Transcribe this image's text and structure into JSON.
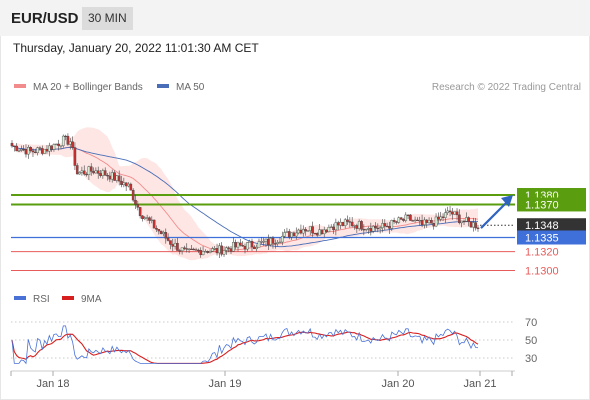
{
  "header": {
    "symbol": "EUR/USD",
    "timeframe": "30 MIN",
    "timestamp": "Thursday, January 20, 2022 11:01:30 AM CET"
  },
  "colors": {
    "bollinger_line": "#f28b8b",
    "bollinger_band": "#fde3e1",
    "ma50": "#4a6db8",
    "resistance": "#5a9e0f",
    "current": "#333333",
    "pivot": "#3f6fd8",
    "support": "#e85b5b",
    "rsi": "#4a72d6",
    "rsi_ma": "#d81f1f",
    "candle_up": "#d6efd6",
    "candle_down": "#c53030"
  },
  "chart_data": [
    {
      "type": "candlestick",
      "legend": [
        {
          "name": "MA 20 + Bollinger Bands",
          "color": "#f28b8b"
        },
        {
          "name": "MA 50",
          "color": "#4a6db8"
        }
      ],
      "watermark": "Research © 2022 Trading Central",
      "x_ticks": [
        "Jan 18",
        "Jan 19",
        "Jan 20",
        "Jan 21"
      ],
      "ylim": [
        1.129,
        1.147
      ],
      "levels": [
        {
          "value": 1.138,
          "label": "1.1380",
          "kind": "resistance"
        },
        {
          "value": 1.137,
          "label": "1.1370",
          "kind": "resistance"
        },
        {
          "value": 1.1348,
          "label": "1.1348",
          "kind": "current"
        },
        {
          "value": 1.1335,
          "label": "1.1335",
          "kind": "pivot"
        },
        {
          "value": 1.132,
          "label": "1.1320",
          "kind": "support"
        },
        {
          "value": 1.13,
          "label": "1.1300",
          "kind": "support"
        }
      ],
      "forecast_target": 1.138,
      "close_anchors": [
        [
          0,
          1.1432
        ],
        [
          8,
          1.1426
        ],
        [
          15,
          1.1429
        ],
        [
          22,
          1.1438
        ],
        [
          25,
          1.1437
        ],
        [
          28,
          1.1403
        ],
        [
          35,
          1.1406
        ],
        [
          42,
          1.1401
        ],
        [
          50,
          1.1389
        ],
        [
          55,
          1.1362
        ],
        [
          60,
          1.1349
        ],
        [
          68,
          1.133
        ],
        [
          75,
          1.1318
        ],
        [
          82,
          1.1322
        ],
        [
          88,
          1.1321
        ],
        [
          95,
          1.1325
        ],
        [
          102,
          1.1327
        ],
        [
          110,
          1.133
        ],
        [
          118,
          1.1338
        ],
        [
          125,
          1.1345
        ],
        [
          132,
          1.1342
        ],
        [
          138,
          1.1348
        ],
        [
          145,
          1.135
        ],
        [
          152,
          1.1347
        ],
        [
          158,
          1.1345
        ],
        [
          165,
          1.1351
        ],
        [
          170,
          1.1355
        ],
        [
          176,
          1.1348
        ],
        [
          182,
          1.1352
        ],
        [
          188,
          1.1362
        ],
        [
          192,
          1.1355
        ],
        [
          196,
          1.135
        ],
        [
          200,
          1.1348
        ]
      ],
      "candles_count": 201
    },
    {
      "type": "line",
      "legend": [
        {
          "name": "RSI",
          "color": "#4a72d6"
        },
        {
          "name": "9MA",
          "color": "#d81f1f"
        }
      ],
      "y_ticks": [
        70,
        50,
        30
      ],
      "ylim": [
        20,
        80
      ]
    }
  ]
}
